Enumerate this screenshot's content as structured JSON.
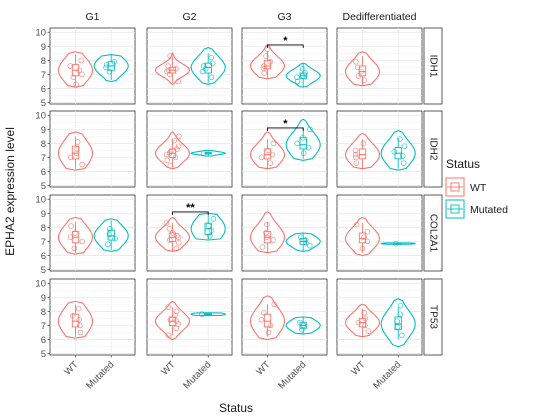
{
  "chart_data": {
    "type": "violin",
    "ylabel": "EPHA2 expression level",
    "xlabel": "Status",
    "facet_columns": [
      "G1",
      "G2",
      "G3",
      "Dedifferentiated"
    ],
    "facet_rows": [
      "IDH1",
      "IDH2",
      "COL2A1",
      "TP53"
    ],
    "categories": [
      "WT",
      "Mutated"
    ],
    "yticks": [
      5,
      6,
      7,
      8,
      9,
      10
    ],
    "ylim": [
      4.9,
      10.3
    ],
    "legend": {
      "title": "Status",
      "placement": "right",
      "entries": [
        {
          "label": "WT",
          "color": "#F8766D"
        },
        {
          "label": "Mutated",
          "color": "#00BFC4"
        }
      ]
    },
    "grid": true,
    "panels": [
      {
        "row": 0,
        "col": 0,
        "groups": [
          {
            "category": "WT",
            "min": 6.1,
            "max": 8.6,
            "q1": 6.9,
            "median": 7.3,
            "q3": 7.7,
            "points": [
              6.3,
              6.8,
              7.0,
              7.3,
              7.6,
              8.0
            ]
          },
          {
            "category": "Mutated",
            "min": 6.5,
            "max": 8.4,
            "q1": 7.3,
            "median": 7.6,
            "q3": 7.9,
            "points": [
              7.2,
              7.5,
              7.7,
              7.9
            ]
          }
        ]
      },
      {
        "row": 0,
        "col": 1,
        "groups": [
          {
            "category": "WT",
            "min": 6.3,
            "max": 8.5,
            "q1": 7.1,
            "median": 7.3,
            "q3": 7.5,
            "points": [
              6.5,
              7.0,
              7.2,
              7.3,
              7.4,
              7.6,
              8.3
            ]
          },
          {
            "category": "Mutated",
            "min": 6.3,
            "max": 8.9,
            "q1": 7.1,
            "median": 7.5,
            "q3": 7.8,
            "points": [
              6.8,
              7.2,
              7.4,
              7.6,
              7.8,
              8.2
            ]
          }
        ]
      },
      {
        "row": 0,
        "col": 2,
        "groups": [
          {
            "category": "WT",
            "min": 6.7,
            "max": 9.1,
            "q1": 7.4,
            "median": 7.6,
            "q3": 8.0,
            "points": [
              7.1,
              7.4,
              7.6,
              7.9,
              8.3,
              8.8
            ]
          },
          {
            "category": "Mutated",
            "min": 6.1,
            "max": 7.8,
            "q1": 6.7,
            "median": 6.9,
            "q3": 7.1,
            "points": [
              6.5,
              6.8,
              6.9,
              7.1,
              7.4
            ]
          }
        ]
      },
      {
        "row": 0,
        "col": 3,
        "groups": [
          {
            "category": "WT",
            "min": 6.2,
            "max": 8.6,
            "q1": 6.9,
            "median": 7.2,
            "q3": 7.6,
            "points": [
              6.6,
              6.9,
              7.2,
              7.5,
              7.9
            ]
          }
        ]
      },
      {
        "row": 1,
        "col": 0,
        "groups": [
          {
            "category": "WT",
            "min": 6.1,
            "max": 8.8,
            "q1": 6.9,
            "median": 7.3,
            "q3": 7.8,
            "points": [
              6.5,
              7.0,
              7.3,
              7.6,
              8.1
            ]
          }
        ]
      },
      {
        "row": 1,
        "col": 1,
        "groups": [
          {
            "category": "WT",
            "min": 6.2,
            "max": 8.8,
            "q1": 7.0,
            "median": 7.3,
            "q3": 7.6,
            "points": [
              6.4,
              6.8,
              7.0,
              7.2,
              7.3,
              7.4,
              7.6,
              7.8,
              8.2,
              8.5
            ]
          },
          {
            "category": "Mutated",
            "min": 7.1,
            "max": 7.5,
            "q1": 7.25,
            "median": 7.3,
            "q3": 7.35,
            "points": [
              7.3
            ]
          }
        ]
      },
      {
        "row": 1,
        "col": 2,
        "groups": [
          {
            "category": "WT",
            "min": 6.2,
            "max": 8.8,
            "q1": 6.9,
            "median": 7.2,
            "q3": 7.6,
            "points": [
              6.6,
              7.0,
              7.2,
              7.5,
              8.0
            ]
          },
          {
            "category": "Mutated",
            "min": 6.8,
            "max": 9.7,
            "q1": 7.6,
            "median": 7.9,
            "q3": 8.4,
            "points": [
              7.3,
              7.7,
              8.0,
              8.4,
              9.0
            ]
          }
        ]
      },
      {
        "row": 1,
        "col": 3,
        "groups": [
          {
            "category": "WT",
            "min": 6.2,
            "max": 8.7,
            "q1": 6.9,
            "median": 7.2,
            "q3": 7.6,
            "points": [
              6.6,
              7.0,
              7.2,
              7.5,
              8.0
            ]
          },
          {
            "category": "Mutated",
            "min": 6.1,
            "max": 8.9,
            "q1": 6.9,
            "median": 7.3,
            "q3": 7.7,
            "points": [
              6.6,
              7.1,
              7.4,
              7.8,
              8.3
            ]
          }
        ]
      },
      {
        "row": 2,
        "col": 0,
        "groups": [
          {
            "category": "WT",
            "min": 6.1,
            "max": 8.7,
            "q1": 6.9,
            "median": 7.3,
            "q3": 7.7,
            "points": [
              6.5,
              7.0,
              7.3,
              7.6,
              8.1
            ]
          },
          {
            "category": "Mutated",
            "min": 6.3,
            "max": 8.6,
            "q1": 7.1,
            "median": 7.4,
            "q3": 7.8,
            "points": [
              6.8,
              7.2,
              7.5,
              7.9
            ]
          }
        ]
      },
      {
        "row": 2,
        "col": 1,
        "groups": [
          {
            "category": "WT",
            "min": 6.3,
            "max": 8.7,
            "q1": 7.0,
            "median": 7.3,
            "q3": 7.6,
            "points": [
              6.5,
              6.9,
              7.1,
              7.3,
              7.4,
              7.6,
              7.9,
              8.3
            ]
          },
          {
            "category": "Mutated",
            "min": 7.1,
            "max": 9.0,
            "q1": 7.5,
            "median": 7.9,
            "q3": 8.3,
            "points": [
              7.4,
              7.8,
              8.1,
              8.6
            ]
          }
        ]
      },
      {
        "row": 2,
        "col": 2,
        "groups": [
          {
            "category": "WT",
            "min": 6.2,
            "max": 9.1,
            "q1": 6.9,
            "median": 7.3,
            "q3": 7.7,
            "points": [
              6.6,
              7.1,
              7.3,
              7.6,
              8.2
            ]
          },
          {
            "category": "Mutated",
            "min": 6.3,
            "max": 7.6,
            "q1": 6.8,
            "median": 7.0,
            "q3": 7.2,
            "points": [
              6.7,
              6.9,
              7.1,
              7.3
            ]
          }
        ]
      },
      {
        "row": 2,
        "col": 3,
        "groups": [
          {
            "category": "WT",
            "min": 6.0,
            "max": 8.7,
            "q1": 6.9,
            "median": 7.2,
            "q3": 7.6,
            "points": [
              6.5,
              7.0,
              7.3,
              7.7,
              8.2
            ]
          },
          {
            "category": "Mutated",
            "min": 6.8,
            "max": 6.9,
            "q1": 6.83,
            "median": 6.85,
            "q3": 6.87,
            "points": [
              6.85
            ]
          }
        ]
      },
      {
        "row": 3,
        "col": 0,
        "groups": [
          {
            "category": "WT",
            "min": 6.1,
            "max": 8.7,
            "q1": 6.9,
            "median": 7.3,
            "q3": 7.8,
            "points": [
              6.5,
              7.0,
              7.4,
              7.7,
              8.2
            ]
          }
        ]
      },
      {
        "row": 3,
        "col": 1,
        "groups": [
          {
            "category": "WT",
            "min": 6.0,
            "max": 8.7,
            "q1": 7.0,
            "median": 7.3,
            "q3": 7.6,
            "points": [
              6.3,
              6.8,
              7.1,
              7.3,
              7.4,
              7.7,
              8.0,
              8.3
            ]
          },
          {
            "category": "Mutated",
            "min": 7.7,
            "max": 7.9,
            "q1": 7.75,
            "median": 7.8,
            "q3": 7.85,
            "points": [
              7.8
            ]
          }
        ]
      },
      {
        "row": 3,
        "col": 2,
        "groups": [
          {
            "category": "WT",
            "min": 6.0,
            "max": 9.1,
            "q1": 6.9,
            "median": 7.3,
            "q3": 7.8,
            "points": [
              6.5,
              7.0,
              7.4,
              7.9,
              8.5
            ]
          },
          {
            "category": "Mutated",
            "min": 6.4,
            "max": 7.6,
            "q1": 6.8,
            "median": 7.0,
            "q3": 7.2,
            "points": [
              6.7,
              7.0,
              7.2
            ]
          }
        ]
      },
      {
        "row": 3,
        "col": 3,
        "groups": [
          {
            "category": "WT",
            "min": 6.2,
            "max": 8.5,
            "q1": 6.9,
            "median": 7.2,
            "q3": 7.5,
            "points": [
              6.6,
              7.0,
              7.2,
              7.5,
              7.9
            ]
          },
          {
            "category": "Mutated",
            "min": 5.5,
            "max": 8.9,
            "q1": 6.7,
            "median": 7.1,
            "q3": 7.6,
            "points": [
              6.3,
              6.9,
              7.3,
              7.8,
              8.4
            ]
          }
        ]
      }
    ],
    "annotations": [
      {
        "row": 0,
        "col": 2,
        "label": "*",
        "y": 9.1
      },
      {
        "row": 1,
        "col": 2,
        "label": "*",
        "y": 9.1
      },
      {
        "row": 2,
        "col": 1,
        "label": "**",
        "y": 9.1
      }
    ]
  }
}
